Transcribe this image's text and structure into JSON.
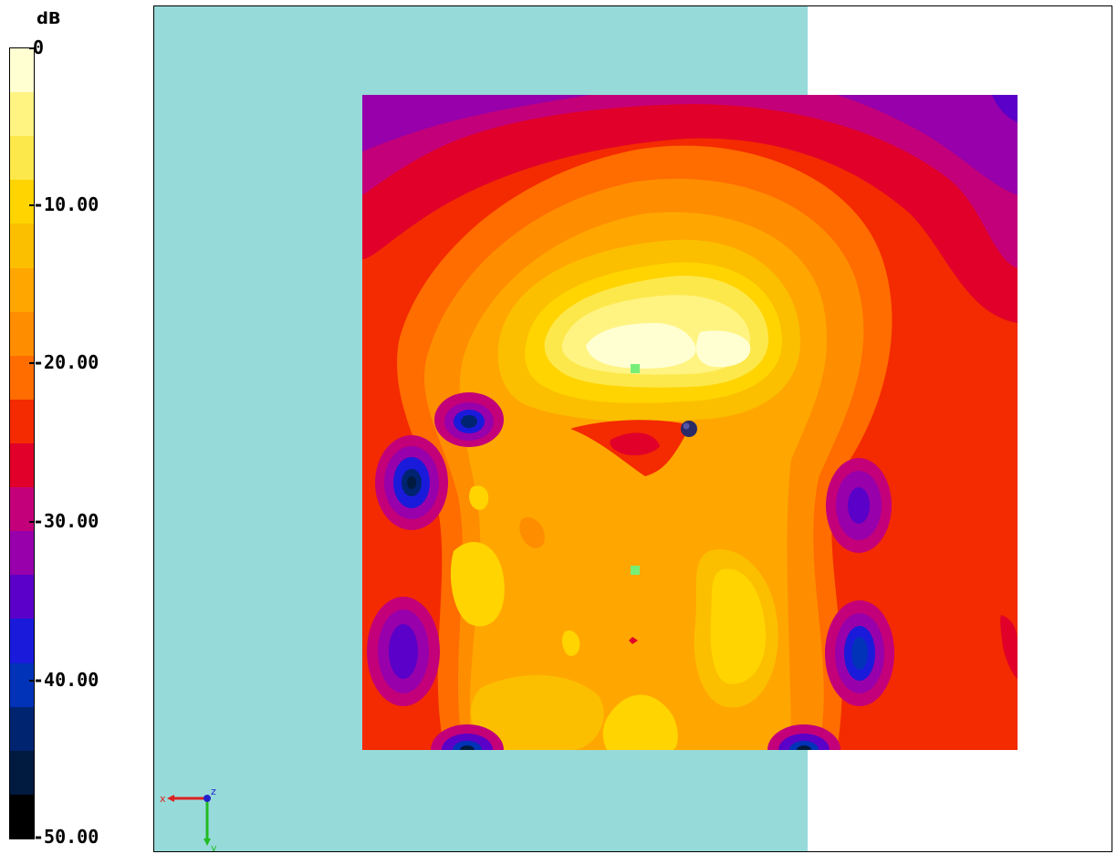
{
  "legend": {
    "unit": "dB",
    "ticks": [
      {
        "label": "0",
        "value": 0
      },
      {
        "label": "-10.00",
        "value": -10
      },
      {
        "label": "-20.00",
        "value": -20
      },
      {
        "label": "-30.00",
        "value": -30
      },
      {
        "label": "-40.00",
        "value": -40
      },
      {
        "label": "-50.00",
        "value": -50
      }
    ],
    "colors": [
      "#ffffd2",
      "#fff482",
      "#fde84c",
      "#ffd400",
      "#fbbf00",
      "#ffa700",
      "#ff8d00",
      "#ff6c00",
      "#f42a00",
      "#e0002a",
      "#c3007a",
      "#9700aa",
      "#5a00c8",
      "#1a1adb",
      "#0033b8",
      "#002470",
      "#001a40",
      "#000000"
    ]
  },
  "colors": {
    "phantom": "#97dada",
    "background": "#ffffff",
    "marker": "#77ee77",
    "probe": "#333366"
  },
  "axes": {
    "x_label": "x",
    "y_label": "y",
    "z_label": "z"
  }
}
